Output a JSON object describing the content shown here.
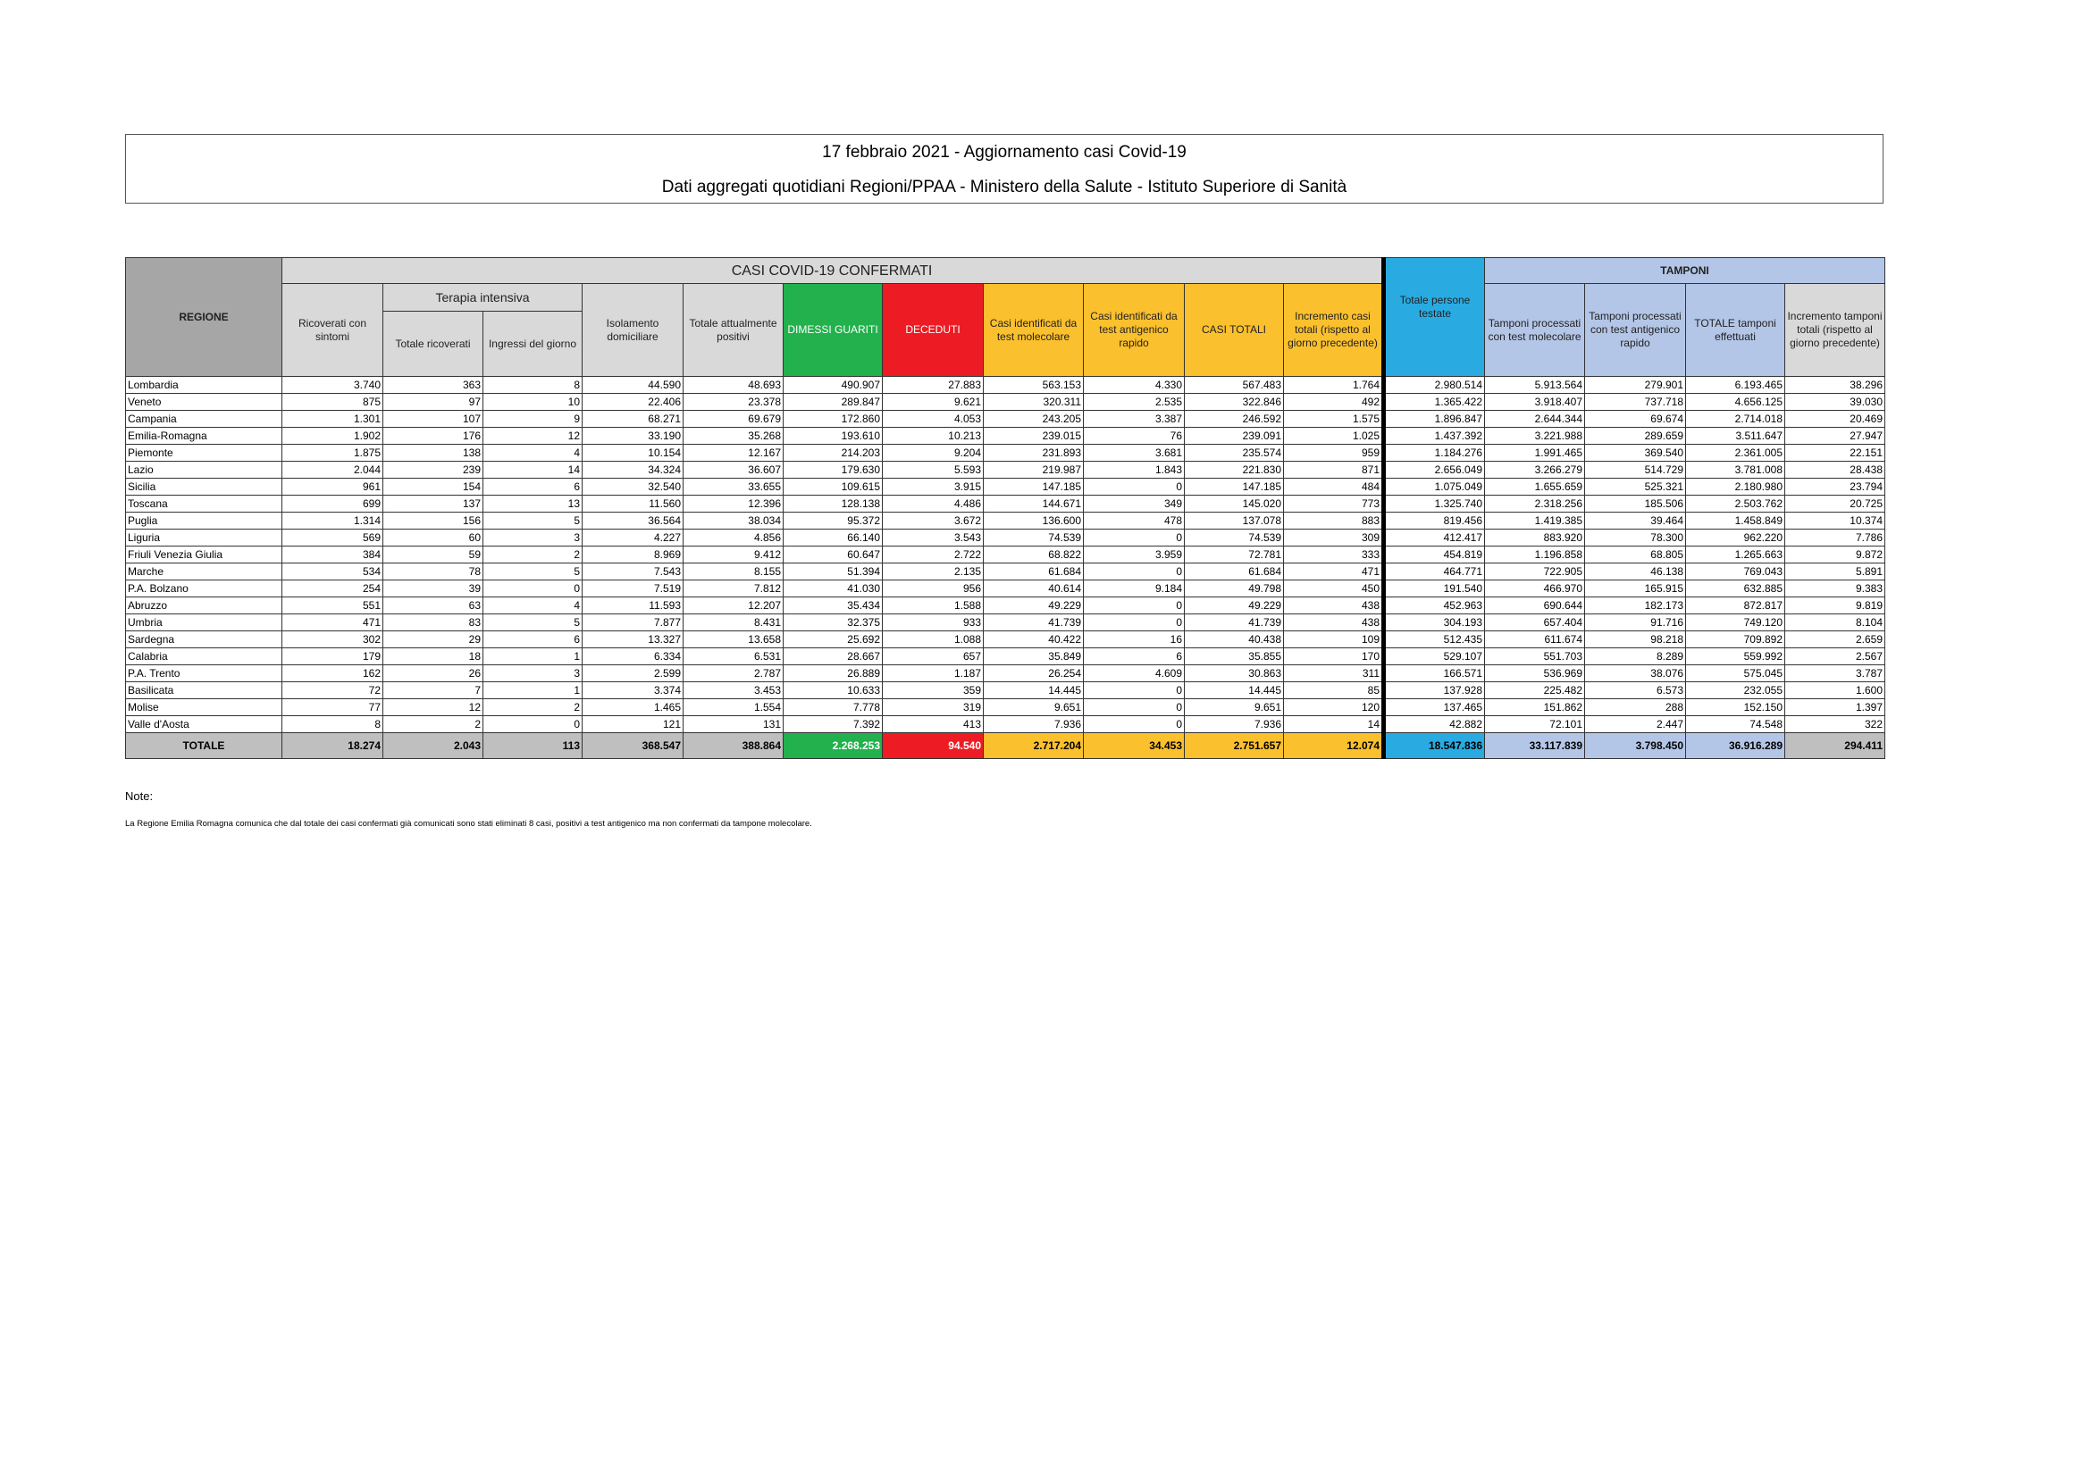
{
  "title": {
    "line1": "17 febbraio 2021 - Aggiornamento casi Covid-19",
    "line2": "Dati aggregati quotidiani Regioni/PPAA - Ministero della Salute - Istituto Superiore di Sanità"
  },
  "table": {
    "group_headers": {
      "regione": "REGIONE",
      "casi_confermati": "CASI COVID-19 CONFERMATI",
      "terapia_intensiva": "Terapia intensiva",
      "tamponi": "TAMPONI"
    },
    "columns": [
      "Ricoverati con sintomi",
      "Totale ricoverati",
      "Ingressi del giorno",
      "Isolamento domiciliare",
      "Totale attualmente positivi",
      "DIMESSI GUARITI",
      "DECEDUTI",
      "Casi identificati da test molecolare",
      "Casi identificati da test antigenico rapido",
      "CASI TOTALI",
      "Incremento casi totali (rispetto al giorno precedente)",
      "Totale persone testate",
      "Tamponi processati con test molecolare",
      "Tamponi processati con test antigenico rapido",
      "TOTALE tamponi effettuati",
      "Incremento tamponi totali (rispetto al giorno precedente)"
    ],
    "colors": {
      "header_grey": "#d9d9d9",
      "region_grey": "#a6a6a6",
      "guariti": "#22b14c",
      "deceduti": "#ed1c24",
      "casi": "#fbc02d",
      "persone_testate": "#29abe2",
      "tamponi": "#b4c6e7"
    },
    "rows": [
      {
        "regione": "Lombardia",
        "values": [
          "3.740",
          "363",
          "8",
          "44.590",
          "48.693",
          "490.907",
          "27.883",
          "563.153",
          "4.330",
          "567.483",
          "1.764",
          "2.980.514",
          "5.913.564",
          "279.901",
          "6.193.465",
          "38.296"
        ]
      },
      {
        "regione": "Veneto",
        "values": [
          "875",
          "97",
          "10",
          "22.406",
          "23.378",
          "289.847",
          "9.621",
          "320.311",
          "2.535",
          "322.846",
          "492",
          "1.365.422",
          "3.918.407",
          "737.718",
          "4.656.125",
          "39.030"
        ]
      },
      {
        "regione": "Campania",
        "values": [
          "1.301",
          "107",
          "9",
          "68.271",
          "69.679",
          "172.860",
          "4.053",
          "243.205",
          "3.387",
          "246.592",
          "1.575",
          "1.896.847",
          "2.644.344",
          "69.674",
          "2.714.018",
          "20.469"
        ]
      },
      {
        "regione": "Emilia-Romagna",
        "values": [
          "1.902",
          "176",
          "12",
          "33.190",
          "35.268",
          "193.610",
          "10.213",
          "239.015",
          "76",
          "239.091",
          "1.025",
          "1.437.392",
          "3.221.988",
          "289.659",
          "3.511.647",
          "27.947"
        ]
      },
      {
        "regione": "Piemonte",
        "values": [
          "1.875",
          "138",
          "4",
          "10.154",
          "12.167",
          "214.203",
          "9.204",
          "231.893",
          "3.681",
          "235.574",
          "959",
          "1.184.276",
          "1.991.465",
          "369.540",
          "2.361.005",
          "22.151"
        ]
      },
      {
        "regione": "Lazio",
        "values": [
          "2.044",
          "239",
          "14",
          "34.324",
          "36.607",
          "179.630",
          "5.593",
          "219.987",
          "1.843",
          "221.830",
          "871",
          "2.656.049",
          "3.266.279",
          "514.729",
          "3.781.008",
          "28.438"
        ]
      },
      {
        "regione": "Sicilia",
        "values": [
          "961",
          "154",
          "6",
          "32.540",
          "33.655",
          "109.615",
          "3.915",
          "147.185",
          "0",
          "147.185",
          "484",
          "1.075.049",
          "1.655.659",
          "525.321",
          "2.180.980",
          "23.794"
        ]
      },
      {
        "regione": "Toscana",
        "values": [
          "699",
          "137",
          "13",
          "11.560",
          "12.396",
          "128.138",
          "4.486",
          "144.671",
          "349",
          "145.020",
          "773",
          "1.325.740",
          "2.318.256",
          "185.506",
          "2.503.762",
          "20.725"
        ]
      },
      {
        "regione": "Puglia",
        "values": [
          "1.314",
          "156",
          "5",
          "36.564",
          "38.034",
          "95.372",
          "3.672",
          "136.600",
          "478",
          "137.078",
          "883",
          "819.456",
          "1.419.385",
          "39.464",
          "1.458.849",
          "10.374"
        ]
      },
      {
        "regione": "Liguria",
        "values": [
          "569",
          "60",
          "3",
          "4.227",
          "4.856",
          "66.140",
          "3.543",
          "74.539",
          "0",
          "74.539",
          "309",
          "412.417",
          "883.920",
          "78.300",
          "962.220",
          "7.786"
        ]
      },
      {
        "regione": "Friuli Venezia Giulia",
        "values": [
          "384",
          "59",
          "2",
          "8.969",
          "9.412",
          "60.647",
          "2.722",
          "68.822",
          "3.959",
          "72.781",
          "333",
          "454.819",
          "1.196.858",
          "68.805",
          "1.265.663",
          "9.872"
        ]
      },
      {
        "regione": "Marche",
        "values": [
          "534",
          "78",
          "5",
          "7.543",
          "8.155",
          "51.394",
          "2.135",
          "61.684",
          "0",
          "61.684",
          "471",
          "464.771",
          "722.905",
          "46.138",
          "769.043",
          "5.891"
        ]
      },
      {
        "regione": "P.A. Bolzano",
        "values": [
          "254",
          "39",
          "0",
          "7.519",
          "7.812",
          "41.030",
          "956",
          "40.614",
          "9.184",
          "49.798",
          "450",
          "191.540",
          "466.970",
          "165.915",
          "632.885",
          "9.383"
        ]
      },
      {
        "regione": "Abruzzo",
        "values": [
          "551",
          "63",
          "4",
          "11.593",
          "12.207",
          "35.434",
          "1.588",
          "49.229",
          "0",
          "49.229",
          "438",
          "452.963",
          "690.644",
          "182.173",
          "872.817",
          "9.819"
        ]
      },
      {
        "regione": "Umbria",
        "values": [
          "471",
          "83",
          "5",
          "7.877",
          "8.431",
          "32.375",
          "933",
          "41.739",
          "0",
          "41.739",
          "438",
          "304.193",
          "657.404",
          "91.716",
          "749.120",
          "8.104"
        ]
      },
      {
        "regione": "Sardegna",
        "values": [
          "302",
          "29",
          "6",
          "13.327",
          "13.658",
          "25.692",
          "1.088",
          "40.422",
          "16",
          "40.438",
          "109",
          "512.435",
          "611.674",
          "98.218",
          "709.892",
          "2.659"
        ]
      },
      {
        "regione": "Calabria",
        "values": [
          "179",
          "18",
          "1",
          "6.334",
          "6.531",
          "28.667",
          "657",
          "35.849",
          "6",
          "35.855",
          "170",
          "529.107",
          "551.703",
          "8.289",
          "559.992",
          "2.567"
        ]
      },
      {
        "regione": "P.A. Trento",
        "values": [
          "162",
          "26",
          "3",
          "2.599",
          "2.787",
          "26.889",
          "1.187",
          "26.254",
          "4.609",
          "30.863",
          "311",
          "166.571",
          "536.969",
          "38.076",
          "575.045",
          "3.787"
        ]
      },
      {
        "regione": "Basilicata",
        "values": [
          "72",
          "7",
          "1",
          "3.374",
          "3.453",
          "10.633",
          "359",
          "14.445",
          "0",
          "14.445",
          "85",
          "137.928",
          "225.482",
          "6.573",
          "232.055",
          "1.600"
        ]
      },
      {
        "regione": "Molise",
        "values": [
          "77",
          "12",
          "2",
          "1.465",
          "1.554",
          "7.778",
          "319",
          "9.651",
          "0",
          "9.651",
          "120",
          "137.465",
          "151.862",
          "288",
          "152.150",
          "1.397"
        ]
      },
      {
        "regione": "Valle d'Aosta",
        "values": [
          "8",
          "2",
          "0",
          "121",
          "131",
          "7.392",
          "413",
          "7.936",
          "0",
          "7.936",
          "14",
          "42.882",
          "72.101",
          "2.447",
          "74.548",
          "322"
        ]
      }
    ],
    "totale": {
      "regione": "TOTALE",
      "values": [
        "18.274",
        "2.043",
        "113",
        "368.547",
        "388.864",
        "2.268.253",
        "94.540",
        "2.717.204",
        "34.453",
        "2.751.657",
        "12.074",
        "18.547.836",
        "33.117.839",
        "3.798.450",
        "36.916.289",
        "294.411"
      ]
    }
  },
  "notes": {
    "label": "Note:",
    "text": "La Regione Emilia Romagna comunica che dal totale dei casi confermati già comunicati sono stati eliminati 8 casi, positivi a test antigenico ma non confermati da tampone molecolare."
  }
}
